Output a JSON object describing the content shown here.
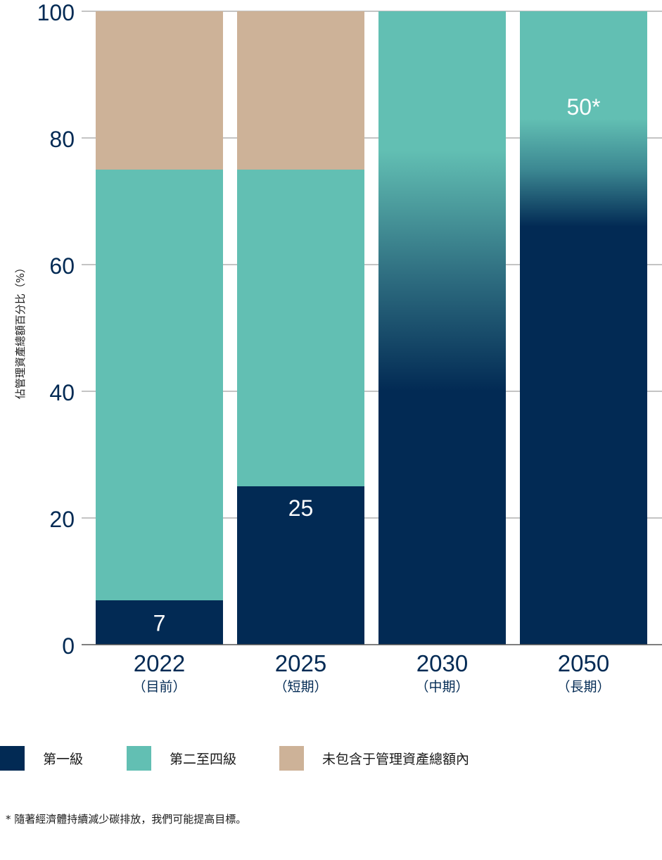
{
  "chart_data": {
    "type": "bar",
    "stacked": true,
    "ylabel": "佔管理資產總額百分比（%）",
    "ylim": [
      0,
      100
    ],
    "yticks": [
      0,
      20,
      40,
      60,
      80,
      100
    ],
    "grid": true,
    "categories": [
      {
        "year": "2022",
        "sub": "（目前）"
      },
      {
        "year": "2025",
        "sub": "（短期）"
      },
      {
        "year": "2030",
        "sub": "（中期）"
      },
      {
        "year": "2050",
        "sub": "（長期）"
      }
    ],
    "series": [
      {
        "name": "第一級",
        "color": "#022a54",
        "values": [
          7,
          25,
          50,
          50
        ]
      },
      {
        "name": "第二至四級",
        "color": "#62bfb3",
        "values": [
          68,
          50,
          50,
          50
        ]
      },
      {
        "name": "未包含于管理資產總額內",
        "color": "#cdb298",
        "values": [
          25,
          25,
          0,
          0
        ]
      }
    ],
    "data_labels": [
      "7",
      "25",
      "",
      "50*"
    ],
    "legend_position": "bottom"
  },
  "footnote": "* 隨著經濟體持續減少碳排放，我們可能提高目標。"
}
